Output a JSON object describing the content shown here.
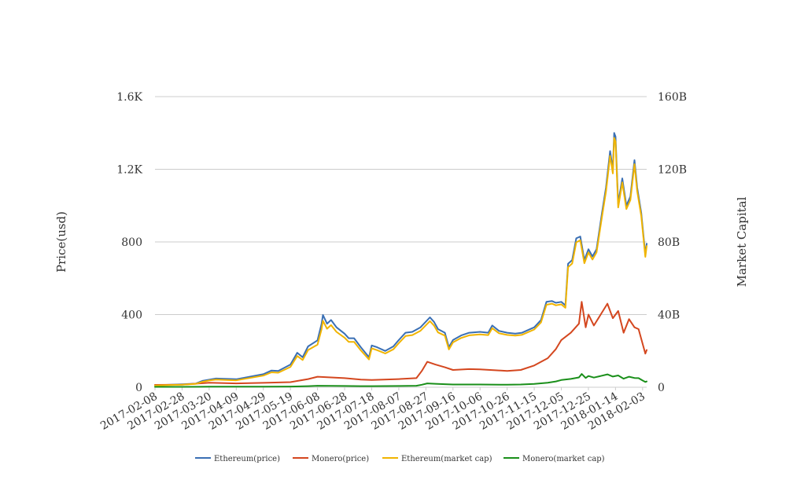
{
  "chart_data": {
    "type": "line",
    "title": "",
    "ylabel": "Price(usd)",
    "y2label": "Market Capital",
    "ylim": [
      0,
      1600
    ],
    "y2lim": [
      0,
      160
    ],
    "y_ticks": [
      {
        "value": 0,
        "label": "0"
      },
      {
        "value": 400,
        "label": "400"
      },
      {
        "value": 800,
        "label": "800"
      },
      {
        "value": 1200,
        "label": "1.2K"
      },
      {
        "value": 1600,
        "label": "1.6K"
      }
    ],
    "y2_ticks": [
      {
        "value": 0,
        "label": "0"
      },
      {
        "value": 40,
        "label": "40B"
      },
      {
        "value": 80,
        "label": "80B"
      },
      {
        "value": 120,
        "label": "120B"
      },
      {
        "value": 160,
        "label": "160B"
      }
    ],
    "y2_unit": "B",
    "x_start": "2017-02-08",
    "x_end": "2018-02-06",
    "x_ticks": [
      "2017-02-08",
      "2017-02-28",
      "2017-03-20",
      "2017-04-09",
      "2017-04-29",
      "2017-05-19",
      "2017-06-08",
      "2017-06-28",
      "2017-07-18",
      "2017-08-07",
      "2017-08-27",
      "2017-09-16",
      "2017-10-06",
      "2017-10-26",
      "2017-11-15",
      "2017-12-05",
      "2017-12-25",
      "2018-01-14",
      "2018-02-03"
    ],
    "legend_position": "bottom",
    "grid": true,
    "series": [
      {
        "name": "Ethereum(price)",
        "axis": "left",
        "color": "#3a6fb4",
        "points": [
          [
            "2017-02-08",
            11
          ],
          [
            "2017-02-28",
            16
          ],
          [
            "2017-03-10",
            20
          ],
          [
            "2017-03-15",
            35
          ],
          [
            "2017-03-20",
            42
          ],
          [
            "2017-03-25",
            48
          ],
          [
            "2017-04-09",
            44
          ],
          [
            "2017-04-29",
            72
          ],
          [
            "2017-05-05",
            92
          ],
          [
            "2017-05-10",
            90
          ],
          [
            "2017-05-19",
            125
          ],
          [
            "2017-05-24",
            190
          ],
          [
            "2017-05-28",
            165
          ],
          [
            "2017-06-01",
            225
          ],
          [
            "2017-06-08",
            258
          ],
          [
            "2017-06-11",
            350
          ],
          [
            "2017-06-12",
            398
          ],
          [
            "2017-06-15",
            350
          ],
          [
            "2017-06-18",
            370
          ],
          [
            "2017-06-22",
            330
          ],
          [
            "2017-06-28",
            295
          ],
          [
            "2017-07-01",
            270
          ],
          [
            "2017-07-05",
            270
          ],
          [
            "2017-07-10",
            220
          ],
          [
            "2017-07-16",
            165
          ],
          [
            "2017-07-18",
            230
          ],
          [
            "2017-07-22",
            220
          ],
          [
            "2017-07-28",
            200
          ],
          [
            "2017-08-03",
            225
          ],
          [
            "2017-08-07",
            260
          ],
          [
            "2017-08-12",
            300
          ],
          [
            "2017-08-17",
            305
          ],
          [
            "2017-08-23",
            330
          ],
          [
            "2017-08-30",
            385
          ],
          [
            "2017-09-02",
            360
          ],
          [
            "2017-09-05",
            320
          ],
          [
            "2017-09-10",
            300
          ],
          [
            "2017-09-13",
            220
          ],
          [
            "2017-09-16",
            260
          ],
          [
            "2017-09-22",
            285
          ],
          [
            "2017-09-28",
            300
          ],
          [
            "2017-10-06",
            305
          ],
          [
            "2017-10-12",
            300
          ],
          [
            "2017-10-15",
            340
          ],
          [
            "2017-10-20",
            310
          ],
          [
            "2017-10-26",
            300
          ],
          [
            "2017-11-01",
            295
          ],
          [
            "2017-11-06",
            300
          ],
          [
            "2017-11-15",
            330
          ],
          [
            "2017-11-20",
            370
          ],
          [
            "2017-11-24",
            470
          ],
          [
            "2017-11-28",
            475
          ],
          [
            "2017-12-01",
            465
          ],
          [
            "2017-12-05",
            470
          ],
          [
            "2017-12-08",
            450
          ],
          [
            "2017-12-10",
            680
          ],
          [
            "2017-12-13",
            700
          ],
          [
            "2017-12-16",
            820
          ],
          [
            "2017-12-19",
            830
          ],
          [
            "2017-12-22",
            700
          ],
          [
            "2017-12-25",
            760
          ],
          [
            "2017-12-28",
            720
          ],
          [
            "2017-12-31",
            760
          ],
          [
            "2018-01-04",
            960
          ],
          [
            "2018-01-07",
            1100
          ],
          [
            "2018-01-10",
            1300
          ],
          [
            "2018-01-12",
            1200
          ],
          [
            "2018-01-13",
            1400
          ],
          [
            "2018-01-14",
            1380
          ],
          [
            "2018-01-16",
            1010
          ],
          [
            "2018-01-19",
            1150
          ],
          [
            "2018-01-22",
            1000
          ],
          [
            "2018-01-25",
            1050
          ],
          [
            "2018-01-28",
            1250
          ],
          [
            "2018-01-30",
            1100
          ],
          [
            "2018-02-02",
            960
          ],
          [
            "2018-02-05",
            730
          ],
          [
            "2018-02-06",
            790
          ]
        ]
      },
      {
        "name": "Monero(price)",
        "axis": "left",
        "color": "#d4471f",
        "points": [
          [
            "2017-02-08",
            13
          ],
          [
            "2017-02-28",
            14
          ],
          [
            "2017-03-20",
            25
          ],
          [
            "2017-04-09",
            21
          ],
          [
            "2017-04-29",
            24
          ],
          [
            "2017-05-19",
            28
          ],
          [
            "2017-06-01",
            45
          ],
          [
            "2017-06-08",
            58
          ],
          [
            "2017-06-28",
            50
          ],
          [
            "2017-07-10",
            42
          ],
          [
            "2017-07-18",
            40
          ],
          [
            "2017-08-07",
            45
          ],
          [
            "2017-08-20",
            50
          ],
          [
            "2017-08-24",
            90
          ],
          [
            "2017-08-28",
            140
          ],
          [
            "2017-09-03",
            125
          ],
          [
            "2017-09-10",
            110
          ],
          [
            "2017-09-16",
            95
          ],
          [
            "2017-09-28",
            100
          ],
          [
            "2017-10-06",
            98
          ],
          [
            "2017-10-26",
            90
          ],
          [
            "2017-11-05",
            95
          ],
          [
            "2017-11-15",
            120
          ],
          [
            "2017-11-25",
            160
          ],
          [
            "2017-12-01",
            210
          ],
          [
            "2017-12-05",
            260
          ],
          [
            "2017-12-12",
            300
          ],
          [
            "2017-12-18",
            350
          ],
          [
            "2017-12-20",
            470
          ],
          [
            "2017-12-23",
            330
          ],
          [
            "2017-12-25",
            400
          ],
          [
            "2017-12-29",
            340
          ],
          [
            "2018-01-03",
            400
          ],
          [
            "2018-01-08",
            460
          ],
          [
            "2018-01-12",
            380
          ],
          [
            "2018-01-16",
            420
          ],
          [
            "2018-01-20",
            300
          ],
          [
            "2018-01-24",
            375
          ],
          [
            "2018-01-28",
            330
          ],
          [
            "2018-01-31",
            320
          ],
          [
            "2018-02-03",
            240
          ],
          [
            "2018-02-05",
            185
          ],
          [
            "2018-02-06",
            205
          ]
        ]
      },
      {
        "name": "Ethereum(market cap)",
        "axis": "right",
        "color": "#f0b400",
        "points": [
          [
            "2017-02-08",
            1.0
          ],
          [
            "2017-02-28",
            1.4
          ],
          [
            "2017-03-10",
            1.8
          ],
          [
            "2017-03-15",
            3.0
          ],
          [
            "2017-03-20",
            3.7
          ],
          [
            "2017-03-25",
            4.2
          ],
          [
            "2017-04-09",
            3.8
          ],
          [
            "2017-04-29",
            6.4
          ],
          [
            "2017-05-05",
            8.2
          ],
          [
            "2017-05-10",
            8.0
          ],
          [
            "2017-05-19",
            11.2
          ],
          [
            "2017-05-24",
            17.2
          ],
          [
            "2017-05-28",
            15.0
          ],
          [
            "2017-06-01",
            20.5
          ],
          [
            "2017-06-08",
            23.5
          ],
          [
            "2017-06-11",
            32.0
          ],
          [
            "2017-06-12",
            36.6
          ],
          [
            "2017-06-15",
            32.2
          ],
          [
            "2017-06-18",
            34.2
          ],
          [
            "2017-06-22",
            30.5
          ],
          [
            "2017-06-28",
            27.3
          ],
          [
            "2017-07-01",
            25.0
          ],
          [
            "2017-07-05",
            25.0
          ],
          [
            "2017-07-10",
            20.3
          ],
          [
            "2017-07-16",
            15.3
          ],
          [
            "2017-07-18",
            21.4
          ],
          [
            "2017-07-22",
            20.4
          ],
          [
            "2017-07-28",
            18.6
          ],
          [
            "2017-08-03",
            20.9
          ],
          [
            "2017-08-07",
            24.3
          ],
          [
            "2017-08-12",
            28.2
          ],
          [
            "2017-08-17",
            28.7
          ],
          [
            "2017-08-23",
            31.1
          ],
          [
            "2017-08-30",
            36.4
          ],
          [
            "2017-09-02",
            34.0
          ],
          [
            "2017-09-05",
            30.2
          ],
          [
            "2017-09-10",
            28.4
          ],
          [
            "2017-09-13",
            20.8
          ],
          [
            "2017-09-16",
            24.7
          ],
          [
            "2017-09-22",
            27.1
          ],
          [
            "2017-09-28",
            28.6
          ],
          [
            "2017-10-06",
            29.1
          ],
          [
            "2017-10-12",
            28.7
          ],
          [
            "2017-10-15",
            32.5
          ],
          [
            "2017-10-20",
            29.7
          ],
          [
            "2017-10-26",
            28.8
          ],
          [
            "2017-11-01",
            28.4
          ],
          [
            "2017-11-06",
            28.9
          ],
          [
            "2017-11-15",
            31.8
          ],
          [
            "2017-11-20",
            35.7
          ],
          [
            "2017-11-24",
            45.4
          ],
          [
            "2017-11-28",
            46.0
          ],
          [
            "2017-12-01",
            45.1
          ],
          [
            "2017-12-05",
            45.6
          ],
          [
            "2017-12-08",
            43.7
          ],
          [
            "2017-12-10",
            66.1
          ],
          [
            "2017-12-13",
            68.1
          ],
          [
            "2017-12-16",
            79.8
          ],
          [
            "2017-12-19",
            80.9
          ],
          [
            "2017-12-22",
            68.3
          ],
          [
            "2017-12-25",
            74.2
          ],
          [
            "2017-12-28",
            70.3
          ],
          [
            "2017-12-31",
            74.3
          ],
          [
            "2018-01-04",
            93.9
          ],
          [
            "2018-01-07",
            107.8
          ],
          [
            "2018-01-10",
            127.4
          ],
          [
            "2018-01-12",
            117.7
          ],
          [
            "2018-01-13",
            137.3
          ],
          [
            "2018-01-14",
            135.3
          ],
          [
            "2018-01-16",
            99.0
          ],
          [
            "2018-01-19",
            112.8
          ],
          [
            "2018-01-22",
            98.1
          ],
          [
            "2018-01-25",
            103.1
          ],
          [
            "2018-01-28",
            122.8
          ],
          [
            "2018-01-30",
            108.1
          ],
          [
            "2018-02-02",
            94.3
          ],
          [
            "2018-02-05",
            71.8
          ],
          [
            "2018-02-06",
            77.7
          ]
        ]
      },
      {
        "name": "Monero(market cap)",
        "axis": "right",
        "color": "#1a8f1a",
        "points": [
          [
            "2017-02-08",
            0.2
          ],
          [
            "2017-02-28",
            0.2
          ],
          [
            "2017-03-20",
            0.3
          ],
          [
            "2017-04-09",
            0.3
          ],
          [
            "2017-04-29",
            0.3
          ],
          [
            "2017-05-19",
            0.4
          ],
          [
            "2017-06-01",
            0.6
          ],
          [
            "2017-06-08",
            0.8
          ],
          [
            "2017-06-28",
            0.7
          ],
          [
            "2017-07-10",
            0.6
          ],
          [
            "2017-07-18",
            0.6
          ],
          [
            "2017-08-07",
            0.7
          ],
          [
            "2017-08-20",
            0.8
          ],
          [
            "2017-08-24",
            1.4
          ],
          [
            "2017-08-28",
            2.1
          ],
          [
            "2017-09-03",
            1.9
          ],
          [
            "2017-09-10",
            1.7
          ],
          [
            "2017-09-16",
            1.5
          ],
          [
            "2017-09-28",
            1.5
          ],
          [
            "2017-10-06",
            1.5
          ],
          [
            "2017-10-26",
            1.4
          ],
          [
            "2017-11-05",
            1.5
          ],
          [
            "2017-11-15",
            1.8
          ],
          [
            "2017-11-25",
            2.5
          ],
          [
            "2017-12-01",
            3.2
          ],
          [
            "2017-12-05",
            4.0
          ],
          [
            "2017-12-12",
            4.6
          ],
          [
            "2017-12-18",
            5.4
          ],
          [
            "2017-12-20",
            7.3
          ],
          [
            "2017-12-23",
            5.1
          ],
          [
            "2017-12-25",
            6.2
          ],
          [
            "2017-12-29",
            5.3
          ],
          [
            "2018-01-03",
            6.2
          ],
          [
            "2018-01-08",
            7.1
          ],
          [
            "2018-01-12",
            5.9
          ],
          [
            "2018-01-16",
            6.5
          ],
          [
            "2018-01-20",
            4.7
          ],
          [
            "2018-01-24",
            5.8
          ],
          [
            "2018-01-28",
            5.1
          ],
          [
            "2018-01-31",
            5.0
          ],
          [
            "2018-02-03",
            3.7
          ],
          [
            "2018-02-05",
            2.9
          ],
          [
            "2018-02-06",
            3.2
          ]
        ]
      }
    ]
  }
}
